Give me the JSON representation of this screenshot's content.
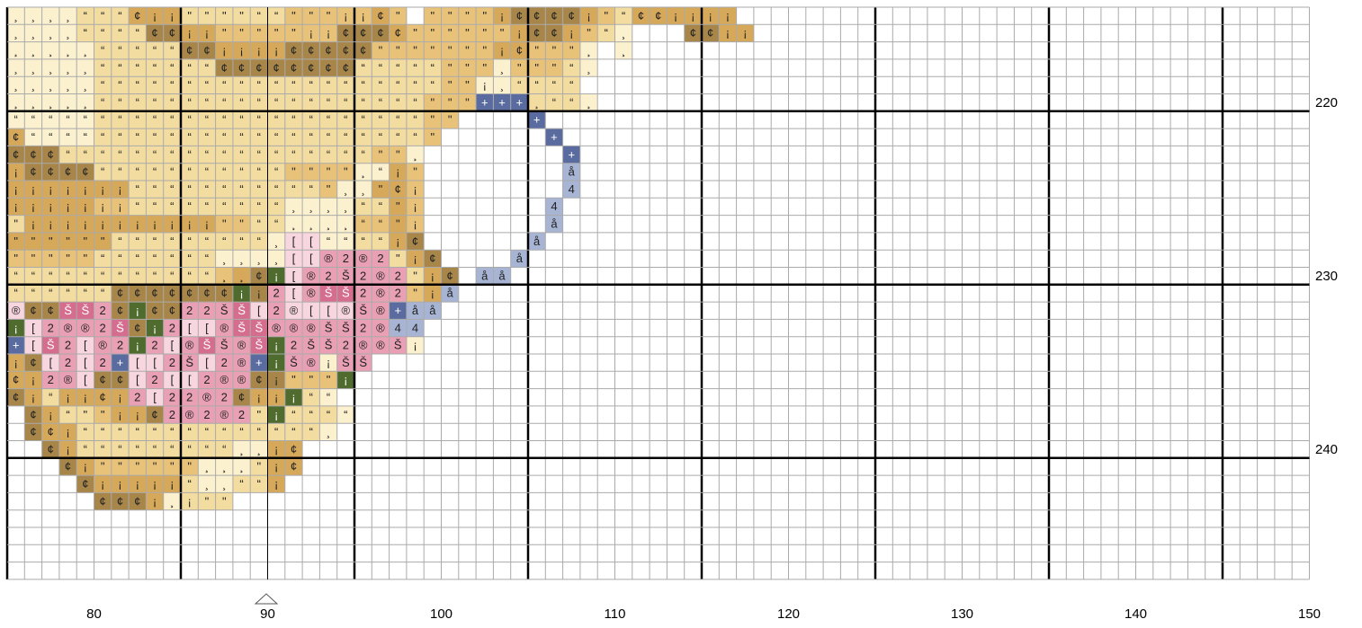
{
  "pattern": {
    "x_axis_labels": [
      "80",
      "90",
      "100",
      "110",
      "120",
      "130",
      "140",
      "150"
    ],
    "y_axis_labels": [
      "220",
      "230",
      "240"
    ],
    "center_marker": "triangle-up",
    "palette": {
      "cream": "#fbf1cf",
      "light_tan": "#f3dca0",
      "tan": "#e9c27a",
      "gold": "#d6a85a",
      "olive_brown": "#a8864a",
      "dark_olive": "#8b7341",
      "green": "#4f6b2e",
      "pink_light": "#f8d6df",
      "pink": "#e9a0b5",
      "rose": "#d56d8f",
      "slate": "#5a6ba0",
      "light_slate": "#a7b4d4"
    },
    "symbols": [
      "¸",
      "“",
      "\"",
      "¢",
      "¡",
      "®",
      "2",
      "Š",
      "[",
      "+",
      "å",
      "4"
    ]
  }
}
